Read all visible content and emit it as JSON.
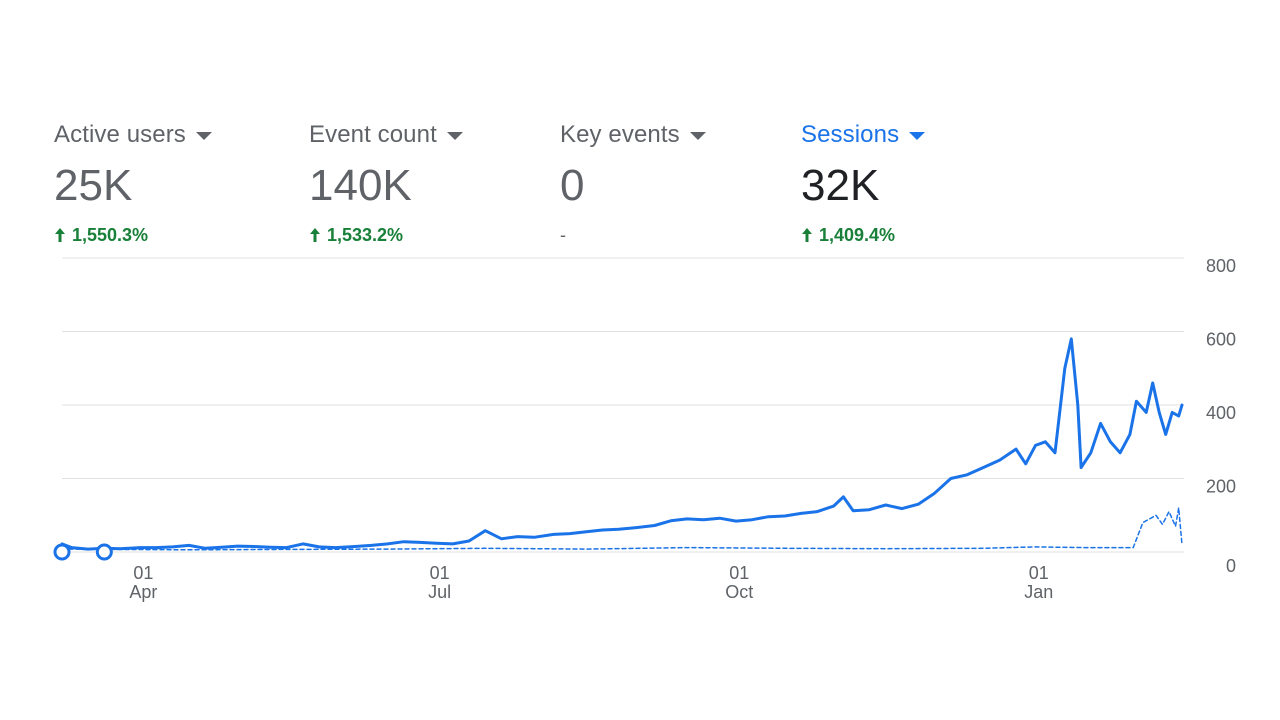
{
  "metrics": [
    {
      "label": "Active users",
      "value": "25K",
      "change": "1,550.3%",
      "trend": "up",
      "selected": false
    },
    {
      "label": "Event count",
      "value": "140K",
      "change": "1,533.2%",
      "trend": "up",
      "selected": false
    },
    {
      "label": "Key events",
      "value": "0",
      "change": "-",
      "trend": "flat",
      "selected": false
    },
    {
      "label": "Sessions",
      "value": "32K",
      "change": "1,409.4%",
      "trend": "up",
      "selected": true
    }
  ],
  "colors": {
    "accent": "#1a73e8",
    "positive": "#188038",
    "muted": "#5f6368",
    "gridline": "#e0e0e0"
  },
  "chart_data": {
    "type": "line",
    "x_axis_ticks": [
      {
        "day": "01",
        "month": "Apr",
        "date": "2024-04-01"
      },
      {
        "day": "01",
        "month": "Jul",
        "date": "2024-07-01"
      },
      {
        "day": "01",
        "month": "Oct",
        "date": "2024-10-01"
      },
      {
        "day": "01",
        "month": "Jan",
        "date": "2025-01-01"
      }
    ],
    "y_axis_ticks": [
      "0",
      "200",
      "400",
      "600",
      "800"
    ],
    "ylim": [
      0,
      800
    ],
    "xlim": [
      "2024-03-07",
      "2025-02-14"
    ],
    "grid": true,
    "series": [
      {
        "style": "solid",
        "points": [
          [
            "2024-03-07",
            22
          ],
          [
            "2024-03-10",
            12
          ],
          [
            "2024-03-15",
            8
          ],
          [
            "2024-03-20",
            10
          ],
          [
            "2024-03-25",
            9
          ],
          [
            "2024-03-31",
            12
          ],
          [
            "2024-04-05",
            12
          ],
          [
            "2024-04-10",
            14
          ],
          [
            "2024-04-15",
            18
          ],
          [
            "2024-04-20",
            10
          ],
          [
            "2024-04-25",
            13
          ],
          [
            "2024-04-30",
            16
          ],
          [
            "2024-05-05",
            15
          ],
          [
            "2024-05-10",
            13
          ],
          [
            "2024-05-15",
            12
          ],
          [
            "2024-05-20",
            22
          ],
          [
            "2024-05-25",
            14
          ],
          [
            "2024-05-30",
            12
          ],
          [
            "2024-06-05",
            15
          ],
          [
            "2024-06-10",
            18
          ],
          [
            "2024-06-15",
            22
          ],
          [
            "2024-06-20",
            28
          ],
          [
            "2024-06-25",
            26
          ],
          [
            "2024-06-30",
            24
          ],
          [
            "2024-07-05",
            22
          ],
          [
            "2024-07-10",
            30
          ],
          [
            "2024-07-15",
            58
          ],
          [
            "2024-07-20",
            36
          ],
          [
            "2024-07-25",
            42
          ],
          [
            "2024-07-30",
            40
          ],
          [
            "2024-08-05",
            48
          ],
          [
            "2024-08-10",
            50
          ],
          [
            "2024-08-15",
            55
          ],
          [
            "2024-08-20",
            60
          ],
          [
            "2024-08-25",
            62
          ],
          [
            "2024-08-30",
            66
          ],
          [
            "2024-09-05",
            72
          ],
          [
            "2024-09-10",
            85
          ],
          [
            "2024-09-15",
            90
          ],
          [
            "2024-09-20",
            88
          ],
          [
            "2024-09-25",
            92
          ],
          [
            "2024-09-30",
            84
          ],
          [
            "2024-10-05",
            88
          ],
          [
            "2024-10-10",
            96
          ],
          [
            "2024-10-15",
            98
          ],
          [
            "2024-10-20",
            105
          ],
          [
            "2024-10-25",
            110
          ],
          [
            "2024-10-30",
            125
          ],
          [
            "2024-11-02",
            150
          ],
          [
            "2024-11-05",
            112
          ],
          [
            "2024-11-10",
            115
          ],
          [
            "2024-11-15",
            128
          ],
          [
            "2024-11-20",
            118
          ],
          [
            "2024-11-25",
            130
          ],
          [
            "2024-11-30",
            160
          ],
          [
            "2024-12-05",
            200
          ],
          [
            "2024-12-10",
            210
          ],
          [
            "2024-12-15",
            230
          ],
          [
            "2024-12-20",
            250
          ],
          [
            "2024-12-25",
            280
          ],
          [
            "2024-12-28",
            240
          ],
          [
            "2024-12-31",
            290
          ],
          [
            "2025-01-03",
            300
          ],
          [
            "2025-01-06",
            270
          ],
          [
            "2025-01-09",
            500
          ],
          [
            "2025-01-11",
            580
          ],
          [
            "2025-01-13",
            400
          ],
          [
            "2025-01-14",
            230
          ],
          [
            "2025-01-17",
            270
          ],
          [
            "2025-01-20",
            350
          ],
          [
            "2025-01-23",
            300
          ],
          [
            "2025-01-26",
            270
          ],
          [
            "2025-01-29",
            320
          ],
          [
            "2025-01-31",
            410
          ],
          [
            "2025-02-03",
            380
          ],
          [
            "2025-02-05",
            460
          ],
          [
            "2025-02-07",
            380
          ],
          [
            "2025-02-09",
            320
          ],
          [
            "2025-02-11",
            380
          ],
          [
            "2025-02-13",
            370
          ],
          [
            "2025-02-14",
            400
          ]
        ]
      },
      {
        "style": "dashed",
        "points": [
          [
            "2024-03-07",
            8
          ],
          [
            "2024-04-15",
            6
          ],
          [
            "2024-05-15",
            7
          ],
          [
            "2024-06-15",
            8
          ],
          [
            "2024-07-15",
            10
          ],
          [
            "2024-08-15",
            8
          ],
          [
            "2024-09-15",
            12
          ],
          [
            "2024-10-15",
            10
          ],
          [
            "2024-11-15",
            9
          ],
          [
            "2024-12-15",
            10
          ],
          [
            "2024-12-31",
            14
          ],
          [
            "2025-01-15",
            12
          ],
          [
            "2025-01-30",
            12
          ],
          [
            "2025-02-02",
            80
          ],
          [
            "2025-02-06",
            100
          ],
          [
            "2025-02-08",
            75
          ],
          [
            "2025-02-10",
            110
          ],
          [
            "2025-02-12",
            70
          ],
          [
            "2025-02-13",
            120
          ],
          [
            "2025-02-14",
            20
          ]
        ]
      }
    ],
    "markers": [
      {
        "date": "2024-03-07",
        "value": 0,
        "shape": "open-circle"
      },
      {
        "date": "2024-03-20",
        "value": 0,
        "shape": "open-circle"
      }
    ]
  }
}
